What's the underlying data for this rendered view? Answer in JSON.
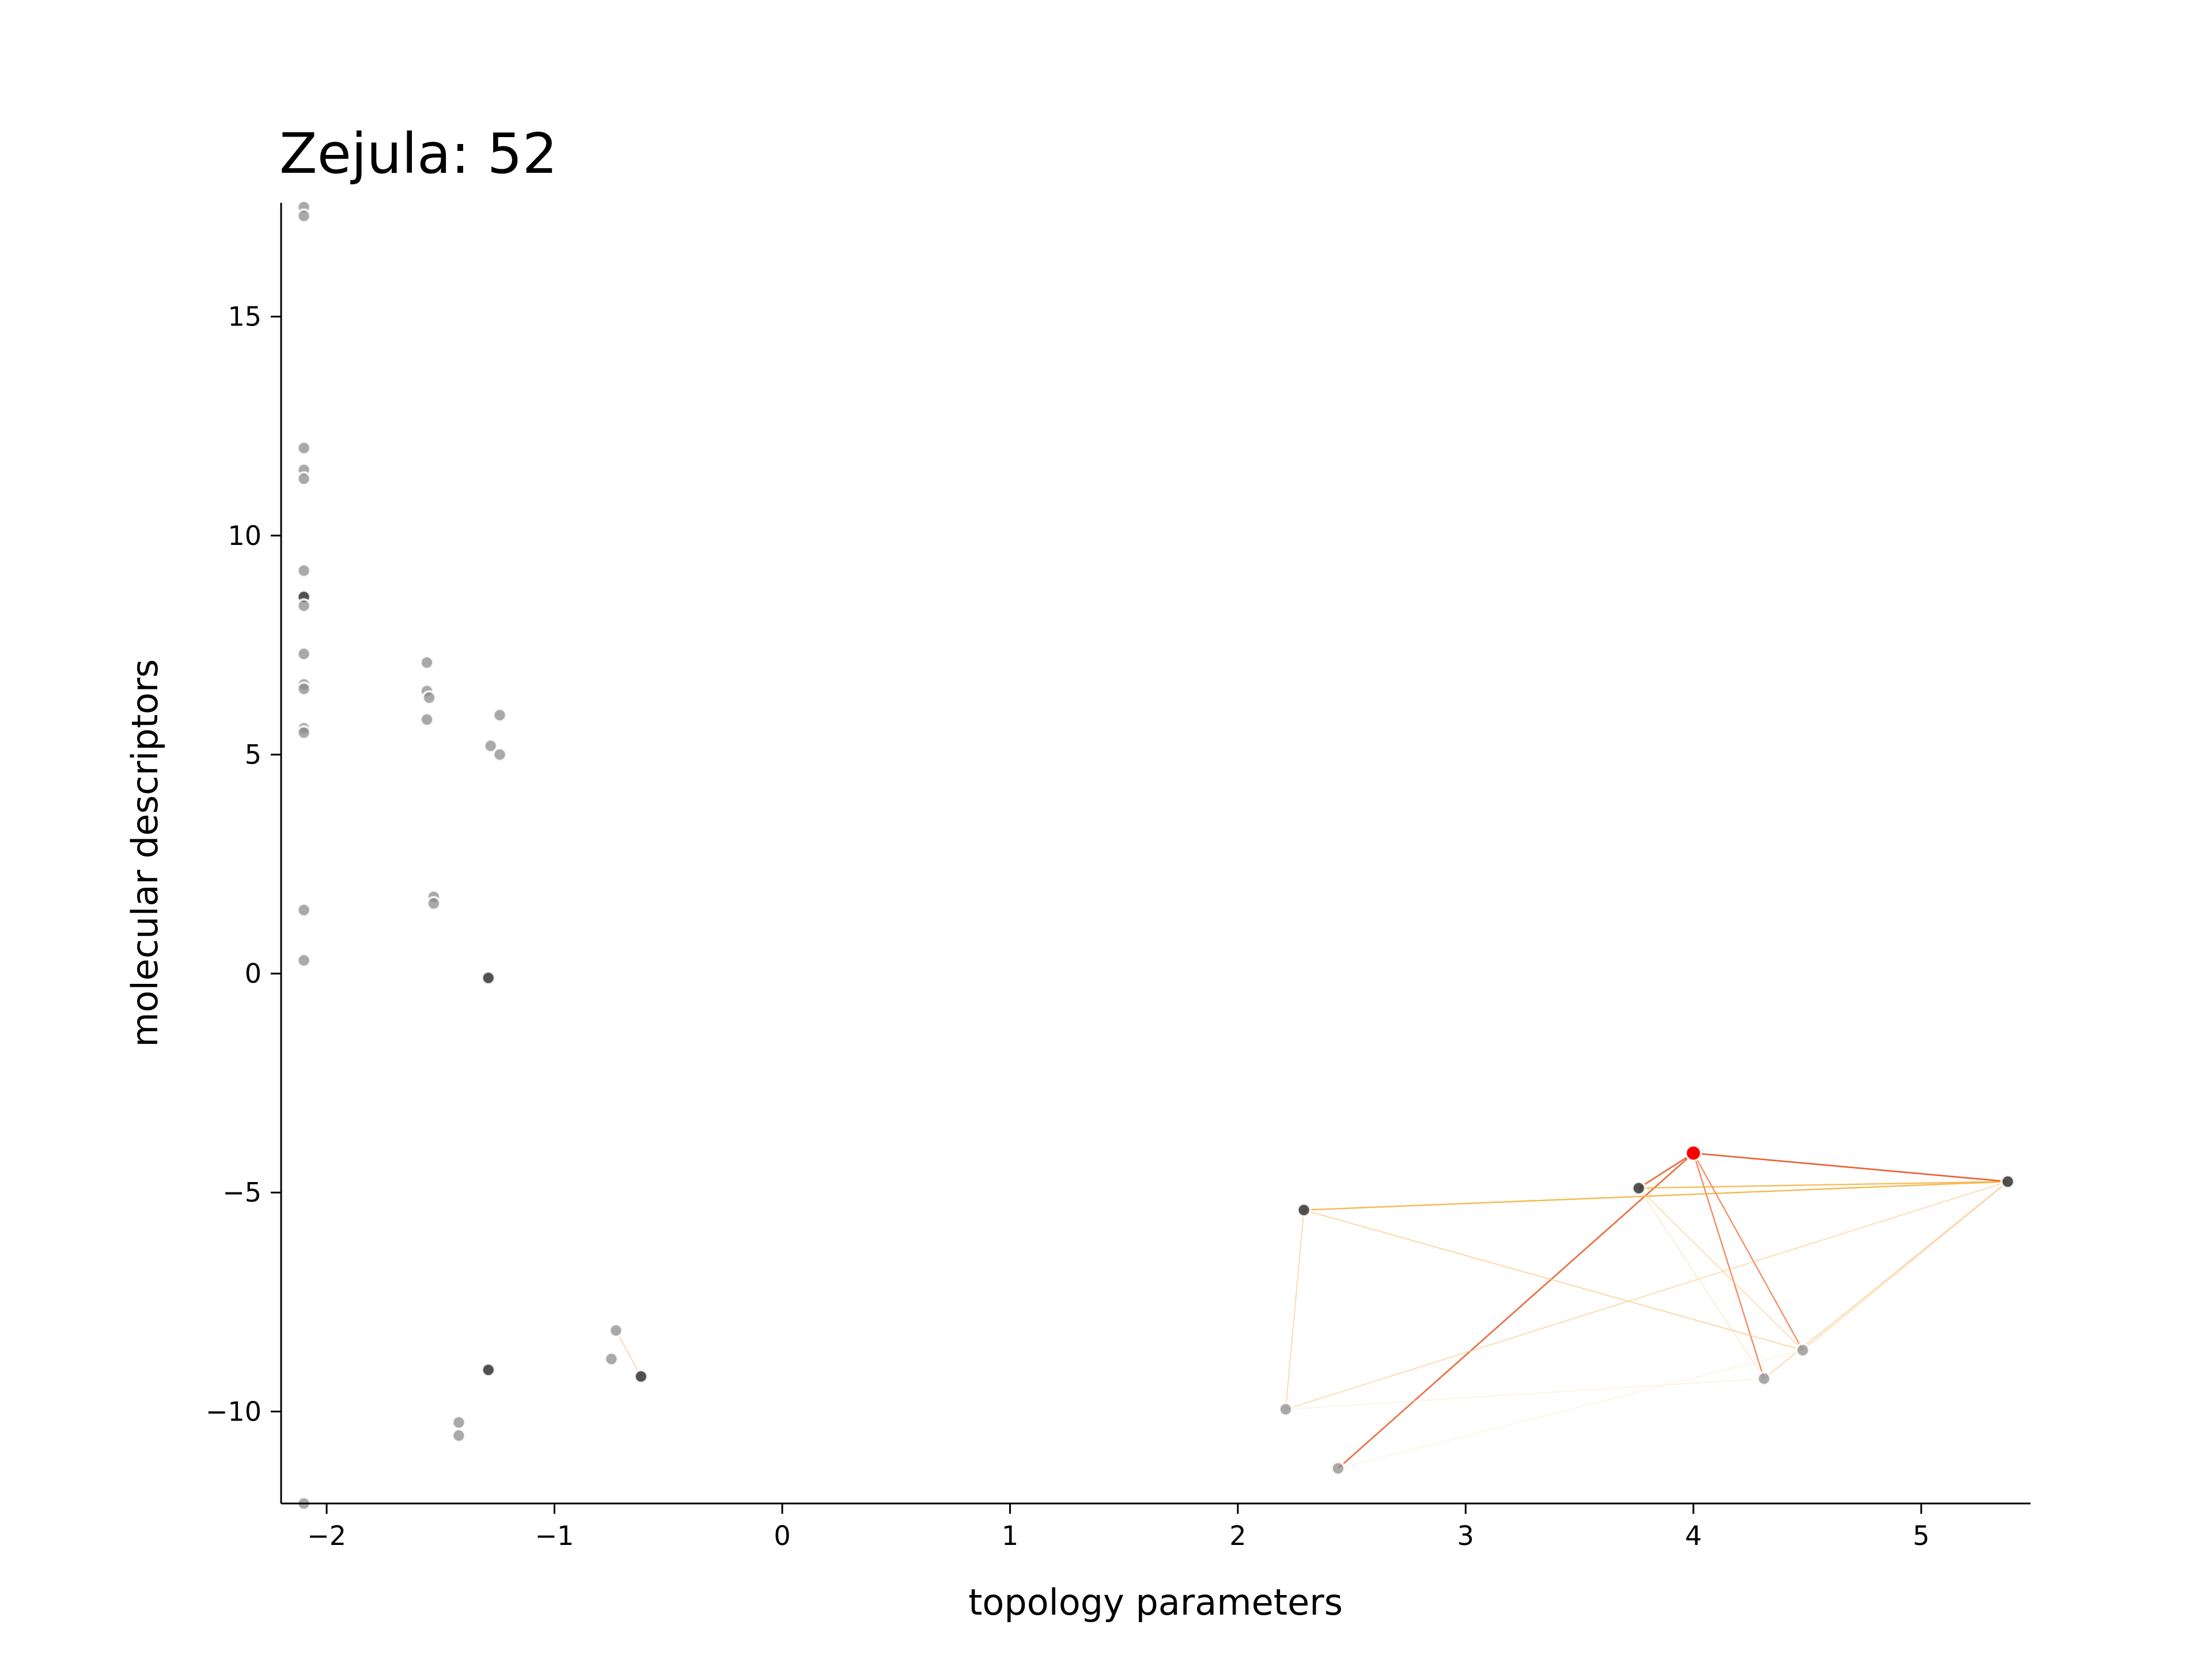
{
  "chart_data": {
    "type": "scatter",
    "title": "Zejula: 52",
    "xlabel": "topology parameters",
    "ylabel": "molecular descriptors",
    "xlim": [
      -2.2,
      5.48
    ],
    "ylim": [
      -12.1,
      17.6
    ],
    "xticks": [
      -2,
      -1,
      0,
      1,
      2,
      3,
      4,
      5
    ],
    "yticks": [
      -10,
      -5,
      0,
      5,
      10,
      15
    ],
    "xtick_labels": [
      "−2",
      "−1",
      "0",
      "1",
      "2",
      "3",
      "4",
      "5"
    ],
    "ytick_labels": [
      "−10",
      "−5",
      "0",
      "5",
      "10",
      "15"
    ],
    "grid": false,
    "colors": {
      "highlight": "#ff0000",
      "point": "#8c8c8c",
      "dark_point": "#333333"
    },
    "highlight": {
      "x": 4.0,
      "y": -4.1
    },
    "points": [
      {
        "x": -2.1,
        "y": 17.5
      },
      {
        "x": -2.1,
        "y": 17.3
      },
      {
        "x": -2.1,
        "y": 12.0
      },
      {
        "x": -2.1,
        "y": 11.5
      },
      {
        "x": -2.1,
        "y": 11.3
      },
      {
        "x": -2.1,
        "y": 9.2
      },
      {
        "x": -2.1,
        "y": 8.6,
        "dark": true
      },
      {
        "x": -2.1,
        "y": 8.4
      },
      {
        "x": -2.1,
        "y": 7.3
      },
      {
        "x": -2.1,
        "y": 6.6
      },
      {
        "x": -2.1,
        "y": 6.5
      },
      {
        "x": -2.1,
        "y": 5.6
      },
      {
        "x": -2.1,
        "y": 5.5
      },
      {
        "x": -2.1,
        "y": 1.45
      },
      {
        "x": -2.1,
        "y": 0.3
      },
      {
        "x": -2.1,
        "y": -12.1
      },
      {
        "x": -1.56,
        "y": 7.1
      },
      {
        "x": -1.56,
        "y": 6.45
      },
      {
        "x": -1.55,
        "y": 6.3
      },
      {
        "x": -1.56,
        "y": 5.8
      },
      {
        "x": -1.53,
        "y": 1.75
      },
      {
        "x": -1.53,
        "y": 1.6
      },
      {
        "x": -1.24,
        "y": 5.9
      },
      {
        "x": -1.28,
        "y": 5.2
      },
      {
        "x": -1.24,
        "y": 5.0
      },
      {
        "x": -1.29,
        "y": -0.1,
        "dark": true
      },
      {
        "x": -1.29,
        "y": -9.05,
        "dark": true
      },
      {
        "x": -1.42,
        "y": -10.25
      },
      {
        "x": -1.42,
        "y": -10.55
      },
      {
        "x": -0.73,
        "y": -8.15
      },
      {
        "x": -0.75,
        "y": -8.8
      },
      {
        "x": -0.62,
        "y": -9.2,
        "dark": true
      },
      {
        "x": 2.29,
        "y": -5.4,
        "dark": true
      },
      {
        "x": 2.21,
        "y": -9.95
      },
      {
        "x": 2.44,
        "y": -11.3
      },
      {
        "x": 3.76,
        "y": -4.9,
        "dark": true
      },
      {
        "x": 5.38,
        "y": -4.75,
        "dark": true
      },
      {
        "x": 4.48,
        "y": -8.6
      },
      {
        "x": 4.31,
        "y": -9.25
      }
    ],
    "edges": [
      {
        "from": [
          4.0,
          -4.1
        ],
        "to": [
          5.38,
          -4.75
        ],
        "color": "#e8501a",
        "width": 2.6,
        "opacity": 0.9
      },
      {
        "from": [
          4.0,
          -4.1
        ],
        "to": [
          3.76,
          -4.9
        ],
        "color": "#e8501a",
        "width": 2.6,
        "opacity": 0.85
      },
      {
        "from": [
          4.0,
          -4.1
        ],
        "to": [
          2.44,
          -11.3
        ],
        "color": "#e8501a",
        "width": 2.6,
        "opacity": 0.85
      },
      {
        "from": [
          4.0,
          -4.1
        ],
        "to": [
          4.31,
          -9.25
        ],
        "color": "#f26b3a",
        "width": 2.4,
        "opacity": 0.8
      },
      {
        "from": [
          4.0,
          -4.1
        ],
        "to": [
          4.48,
          -8.6
        ],
        "color": "#f26b3a",
        "width": 2.4,
        "opacity": 0.75
      },
      {
        "from": [
          2.29,
          -5.4
        ],
        "to": [
          5.38,
          -4.75
        ],
        "color": "#f5a623",
        "width": 2.4,
        "opacity": 0.8
      },
      {
        "from": [
          3.76,
          -4.9
        ],
        "to": [
          5.38,
          -4.75
        ],
        "color": "#f5a623",
        "width": 2.4,
        "opacity": 0.75
      },
      {
        "from": [
          2.29,
          -5.4
        ],
        "to": [
          4.48,
          -8.6
        ],
        "color": "#f9c27a",
        "width": 2,
        "opacity": 0.65
      },
      {
        "from": [
          2.29,
          -5.4
        ],
        "to": [
          2.21,
          -9.95
        ],
        "color": "#f9c27a",
        "width": 2,
        "opacity": 0.6
      },
      {
        "from": [
          2.21,
          -9.95
        ],
        "to": [
          5.38,
          -4.75
        ],
        "color": "#f9c27a",
        "width": 2,
        "opacity": 0.55
      },
      {
        "from": [
          4.31,
          -9.25
        ],
        "to": [
          5.38,
          -4.75
        ],
        "color": "#f9c27a",
        "width": 2,
        "opacity": 0.6
      },
      {
        "from": [
          4.48,
          -8.6
        ],
        "to": [
          5.38,
          -4.75
        ],
        "color": "#f9c27a",
        "width": 2,
        "opacity": 0.55
      },
      {
        "from": [
          3.76,
          -4.9
        ],
        "to": [
          4.48,
          -8.6
        ],
        "color": "#f9c27a",
        "width": 2,
        "opacity": 0.55
      },
      {
        "from": [
          3.76,
          -4.9
        ],
        "to": [
          4.31,
          -9.25
        ],
        "color": "#fcd9a6",
        "width": 2,
        "opacity": 0.5
      },
      {
        "from": [
          2.21,
          -9.95
        ],
        "to": [
          4.31,
          -9.25
        ],
        "color": "#fde7c8",
        "width": 1.8,
        "opacity": 0.5
      },
      {
        "from": [
          2.44,
          -11.3
        ],
        "to": [
          4.48,
          -8.6
        ],
        "color": "#fde7c8",
        "width": 1.8,
        "opacity": 0.45
      },
      {
        "from": [
          -0.73,
          -8.15
        ],
        "to": [
          -0.62,
          -9.2
        ],
        "color": "#f9c27a",
        "width": 2,
        "opacity": 0.6
      }
    ]
  }
}
